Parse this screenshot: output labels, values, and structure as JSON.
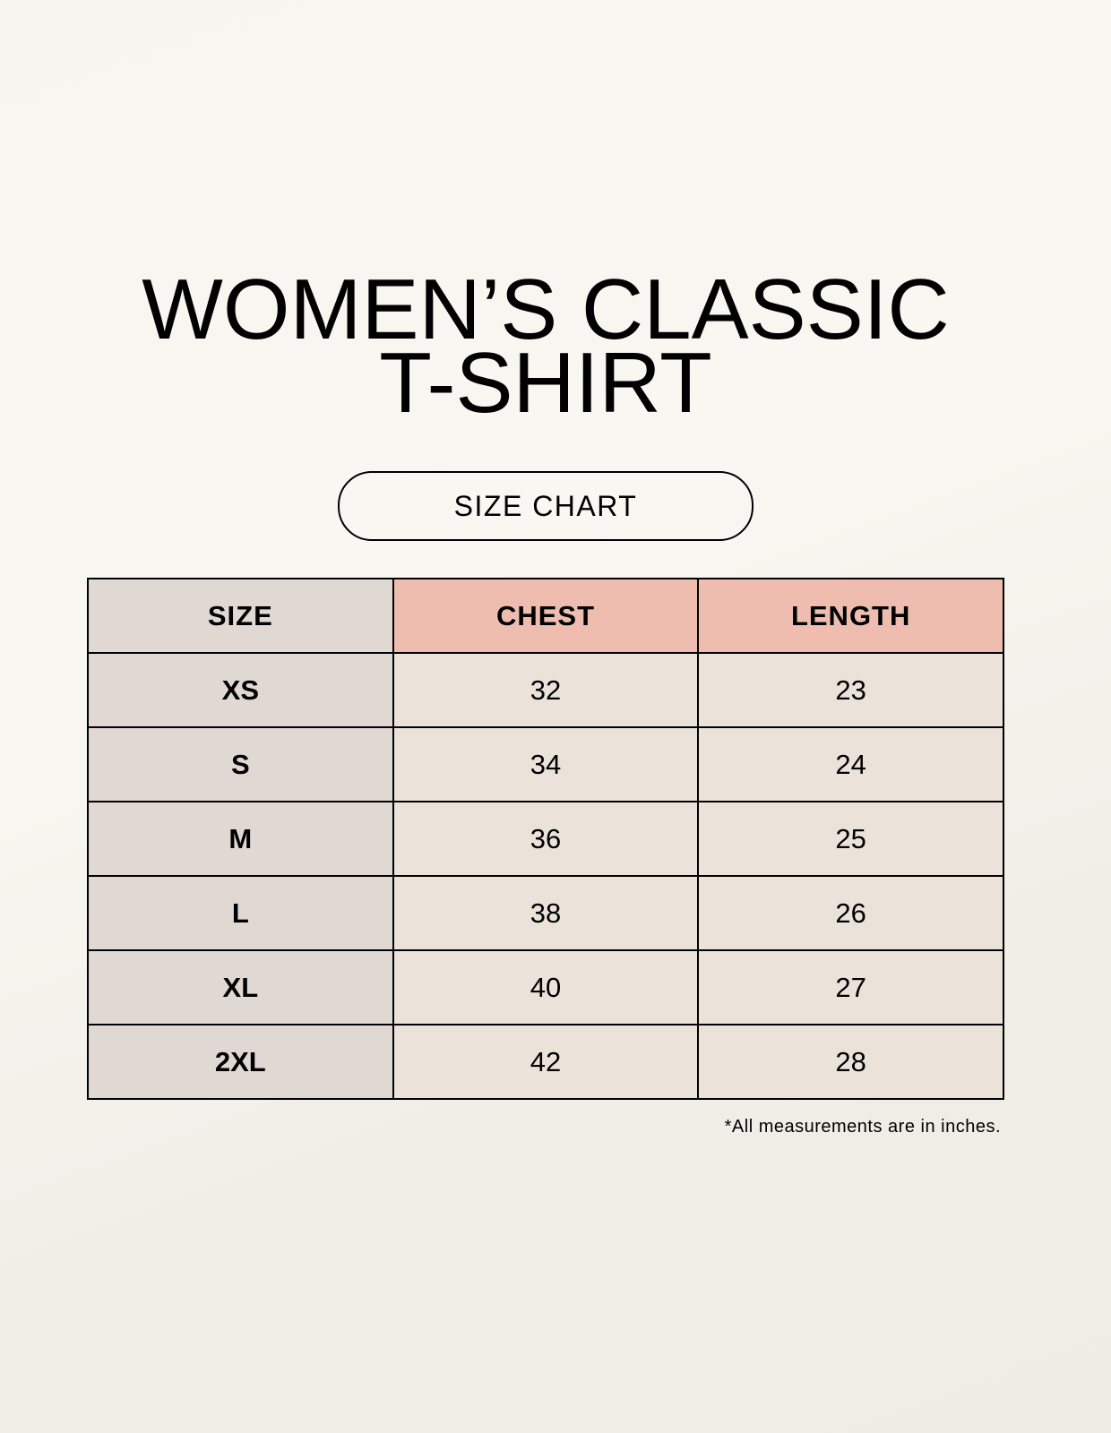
{
  "title_line1": "WOMEN’S CLASSIC",
  "title_line2": "T-SHIRT",
  "badge": "SIZE CHART",
  "table": {
    "headers": [
      "SIZE",
      "CHEST",
      "LENGTH"
    ],
    "rows": [
      [
        "XS",
        "32",
        "23"
      ],
      [
        "S",
        "34",
        "24"
      ],
      [
        "M",
        "36",
        "25"
      ],
      [
        "L",
        "38",
        "26"
      ],
      [
        "XL",
        "40",
        "27"
      ],
      [
        "2XL",
        "42",
        "28"
      ]
    ]
  },
  "note": "*All measurements are in inches.",
  "colors": {
    "size_column": "#e0d8d3",
    "header_accent": "#eebdb0",
    "value_cells": "#ebe3d9"
  }
}
